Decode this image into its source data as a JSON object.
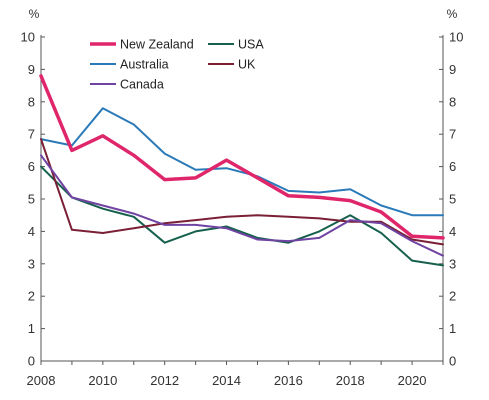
{
  "chart_data": {
    "type": "line",
    "unit_left": "%",
    "unit_right": "%",
    "ylim": [
      0,
      10
    ],
    "y_ticks": [
      0,
      1,
      2,
      3,
      4,
      5,
      6,
      7,
      8,
      9,
      10
    ],
    "xlim": [
      2008,
      2021
    ],
    "x_ticks": [
      2008,
      2010,
      2012,
      2014,
      2016,
      2018,
      2020
    ],
    "x": [
      2008,
      2009,
      2010,
      2011,
      2012,
      2013,
      2014,
      2015,
      2016,
      2017,
      2018,
      2019,
      2020,
      2021
    ],
    "grid": false,
    "legend_position": "top-left",
    "series": [
      {
        "name": "Australia",
        "color": "#2a7ab9",
        "width": 2,
        "values": [
          6.85,
          6.65,
          7.8,
          7.3,
          6.4,
          5.9,
          5.95,
          5.7,
          5.25,
          5.2,
          5.3,
          4.8,
          4.5,
          4.5
        ]
      },
      {
        "name": "USA",
        "color": "#17604d",
        "width": 2,
        "values": [
          6.0,
          5.05,
          4.7,
          4.45,
          3.65,
          4.0,
          4.15,
          3.8,
          3.65,
          4.0,
          4.5,
          3.95,
          3.1,
          2.95
        ]
      },
      {
        "name": "UK",
        "color": "#7a1f35",
        "width": 2,
        "values": [
          6.85,
          4.05,
          3.95,
          4.1,
          4.25,
          4.35,
          4.45,
          4.5,
          4.45,
          4.4,
          4.3,
          4.3,
          3.75,
          3.6
        ]
      },
      {
        "name": "Canada",
        "color": "#7043a3",
        "width": 2,
        "values": [
          6.35,
          5.05,
          4.8,
          4.55,
          4.2,
          4.2,
          4.1,
          3.75,
          3.7,
          3.8,
          4.35,
          4.25,
          3.7,
          3.25
        ]
      },
      {
        "name": "New Zealand",
        "color": "#e0266b",
        "width": 3.5,
        "values": [
          8.8,
          6.5,
          6.95,
          6.35,
          5.6,
          5.65,
          6.2,
          5.65,
          5.1,
          5.05,
          4.95,
          4.6,
          3.85,
          3.8
        ]
      }
    ],
    "legend": [
      {
        "name": "New Zealand",
        "color": "#e0266b",
        "width": 3.5
      },
      {
        "name": "USA",
        "color": "#17604d",
        "width": 2
      },
      {
        "name": "Australia",
        "color": "#2a7ab9",
        "width": 2
      },
      {
        "name": "UK",
        "color": "#7a1f35",
        "width": 2
      },
      {
        "name": "Canada",
        "color": "#7043a3",
        "width": 2
      }
    ]
  }
}
